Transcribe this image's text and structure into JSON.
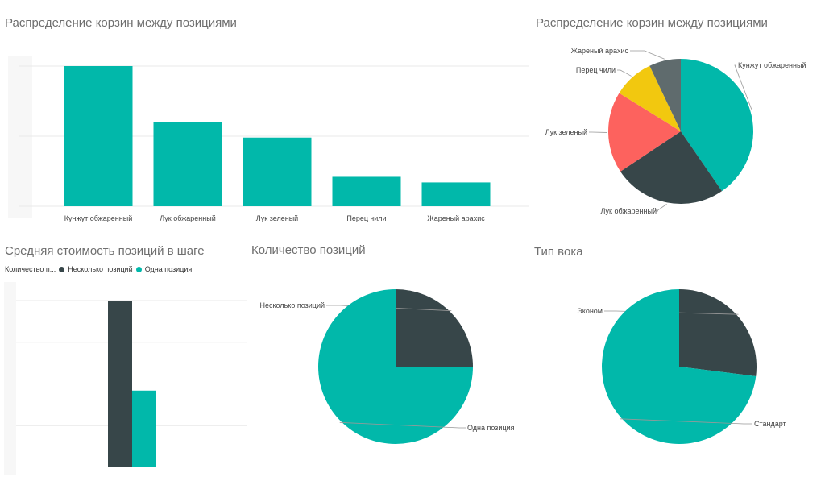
{
  "colors": {
    "teal": "#01b8aa",
    "dark": "#374649",
    "red": "#fd625e",
    "yellow": "#f2c80f",
    "gray": "#5f6b6d",
    "grid": "#e8e8e8"
  },
  "chart_data": [
    {
      "id": "bar1",
      "type": "bar",
      "title": "Распределение корзин между позициями",
      "categories": [
        "Кунжут обжаренный",
        "Лук обжаренный",
        "Лук зеленый",
        "Перец чили",
        "Жареный арахис"
      ],
      "values": [
        100,
        60,
        49,
        21,
        17
      ],
      "ylim": [
        0,
        100
      ],
      "grid": true,
      "color": "teal"
    },
    {
      "id": "pie1",
      "type": "pie",
      "title": "Распределение корзин между позициями",
      "labels": [
        "Кунжут обжаренный",
        "Лук обжаренный",
        "Лук зеленый",
        "Перец чили",
        "Жареный арахис"
      ],
      "values": [
        40,
        25,
        18,
        9,
        7
      ],
      "colors": [
        "teal",
        "dark",
        "red",
        "yellow",
        "gray"
      ]
    },
    {
      "id": "bar2",
      "type": "bar",
      "title": "Средняя стоимость позиций в шаге",
      "legend_title": "Количество п...",
      "series": [
        {
          "name": "Несколько позиций",
          "values": [
            100
          ],
          "color": "dark"
        },
        {
          "name": "Одна позиция",
          "values": [
            46
          ],
          "color": "teal"
        }
      ],
      "ylim": [
        0,
        100
      ],
      "grid": true,
      "legend_position": "top-left"
    },
    {
      "id": "pie2",
      "type": "pie",
      "title": "Количество позиций",
      "labels": [
        "Несколько позиций",
        "Одна позиция"
      ],
      "values": [
        25,
        75
      ],
      "colors": [
        "dark",
        "teal"
      ]
    },
    {
      "id": "pie3",
      "type": "pie",
      "title": "Тип вока",
      "labels": [
        "Эконом",
        "Стандарт"
      ],
      "values": [
        27,
        73
      ],
      "colors": [
        "dark",
        "teal"
      ]
    }
  ]
}
